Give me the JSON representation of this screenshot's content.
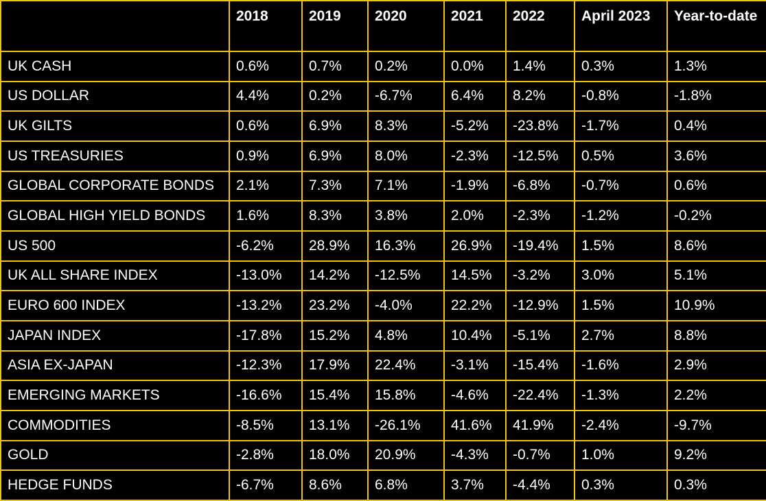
{
  "table": {
    "columns": [
      "",
      "2018",
      "2019",
      "2020",
      "2021",
      "2022",
      "April 2023",
      "Year-to-date"
    ],
    "rows": [
      [
        "UK CASH",
        "0.6%",
        "0.7%",
        "0.2%",
        "0.0%",
        "1.4%",
        "0.3%",
        "1.3%"
      ],
      [
        "US DOLLAR",
        "4.4%",
        "0.2%",
        "-6.7%",
        "6.4%",
        "8.2%",
        "-0.8%",
        "-1.8%"
      ],
      [
        "UK GILTS",
        "0.6%",
        "6.9%",
        "8.3%",
        "-5.2%",
        "-23.8%",
        "-1.7%",
        "0.4%"
      ],
      [
        "US TREASURIES",
        "0.9%",
        "6.9%",
        "8.0%",
        "-2.3%",
        "-12.5%",
        "0.5%",
        "3.6%"
      ],
      [
        "GLOBAL CORPORATE BONDS",
        "2.1%",
        "7.3%",
        "7.1%",
        "-1.9%",
        "-6.8%",
        "-0.7%",
        "0.6%"
      ],
      [
        "GLOBAL HIGH YIELD BONDS",
        "1.6%",
        "8.3%",
        "3.8%",
        "2.0%",
        "-2.3%",
        "-1.2%",
        "-0.2%"
      ],
      [
        "US 500",
        "-6.2%",
        "28.9%",
        "16.3%",
        "26.9%",
        "-19.4%",
        "1.5%",
        "8.6%"
      ],
      [
        "UK ALL SHARE INDEX",
        "-13.0%",
        "14.2%",
        "-12.5%",
        "14.5%",
        "-3.2%",
        "3.0%",
        "5.1%"
      ],
      [
        "EURO 600 INDEX",
        "-13.2%",
        "23.2%",
        "-4.0%",
        "22.2%",
        "-12.9%",
        "1.5%",
        "10.9%"
      ],
      [
        "JAPAN INDEX",
        "-17.8%",
        "15.2%",
        "4.8%",
        "10.4%",
        "-5.1%",
        "2.7%",
        "8.8%"
      ],
      [
        "ASIA EX-JAPAN",
        "-12.3%",
        "17.9%",
        "22.4%",
        "-3.1%",
        "-15.4%",
        "-1.6%",
        "2.9%"
      ],
      [
        "EMERGING MARKETS",
        "-16.6%",
        "15.4%",
        "15.8%",
        "-4.6%",
        "-22.4%",
        "-1.3%",
        "2.2%"
      ],
      [
        "COMMODITIES",
        "-8.5%",
        "13.1%",
        "-26.1%",
        "41.6%",
        "41.9%",
        "-2.4%",
        "-9.7%"
      ],
      [
        "GOLD",
        "-2.8%",
        "18.0%",
        "20.9%",
        "-4.3%",
        "-0.7%",
        "1.0%",
        "9.2%"
      ],
      [
        "HEDGE FUNDS",
        "-6.7%",
        "8.6%",
        "6.8%",
        "3.7%",
        "-4.4%",
        "0.3%",
        "0.3%"
      ]
    ]
  },
  "colors": {
    "background": "#000000",
    "grid": "#f2c500",
    "text": "#ffffff"
  }
}
